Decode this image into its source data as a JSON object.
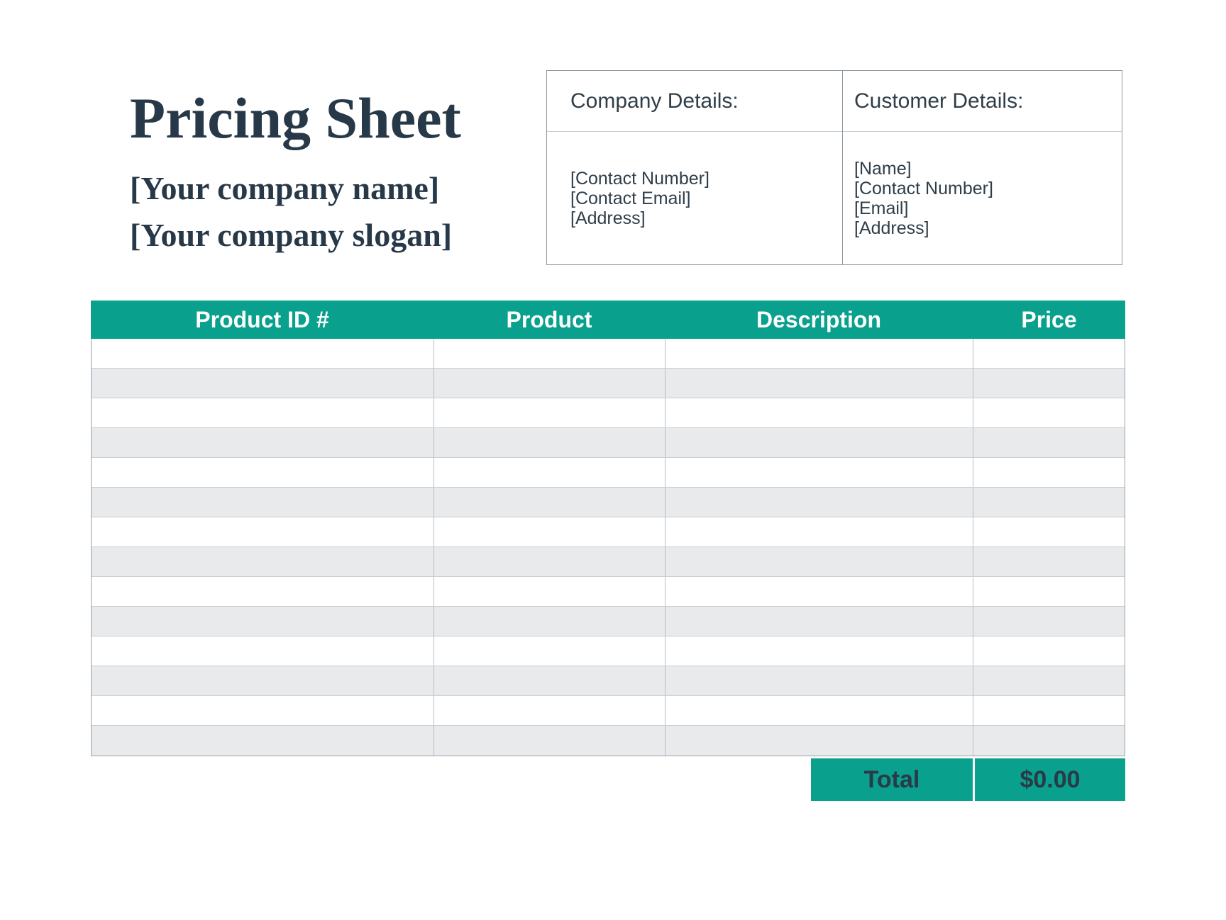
{
  "header": {
    "title": "Pricing Sheet",
    "company_name": "[Your company name]",
    "company_slogan": "[Your company slogan]"
  },
  "details_panel": {
    "company": {
      "heading": "Company Details:",
      "lines": [
        "[Contact Number]",
        "[Contact Email]",
        "[Address]"
      ]
    },
    "customer": {
      "heading": "Customer Details:",
      "lines": [
        "[Name]",
        "[Contact Number]",
        "[Email]",
        "[Address]"
      ]
    }
  },
  "pricing_table": {
    "columns": [
      "Product ID #",
      "Product",
      "Description",
      "Price"
    ],
    "rows": [
      [
        "",
        "",
        "",
        ""
      ],
      [
        "",
        "",
        "",
        ""
      ],
      [
        "",
        "",
        "",
        ""
      ],
      [
        "",
        "",
        "",
        ""
      ],
      [
        "",
        "",
        "",
        ""
      ],
      [
        "",
        "",
        "",
        ""
      ],
      [
        "",
        "",
        "",
        ""
      ],
      [
        "",
        "",
        "",
        ""
      ],
      [
        "",
        "",
        "",
        ""
      ],
      [
        "",
        "",
        "",
        ""
      ],
      [
        "",
        "",
        "",
        ""
      ],
      [
        "",
        "",
        "",
        ""
      ],
      [
        "",
        "",
        "",
        ""
      ],
      [
        "",
        "",
        "",
        ""
      ]
    ],
    "row_count": 14,
    "total_label": "Total",
    "total_value": "$0.00"
  },
  "colors": {
    "accent_teal": "#09A08D",
    "stripe_gray": "#E8EAEC",
    "dark_navy": "#273948"
  }
}
